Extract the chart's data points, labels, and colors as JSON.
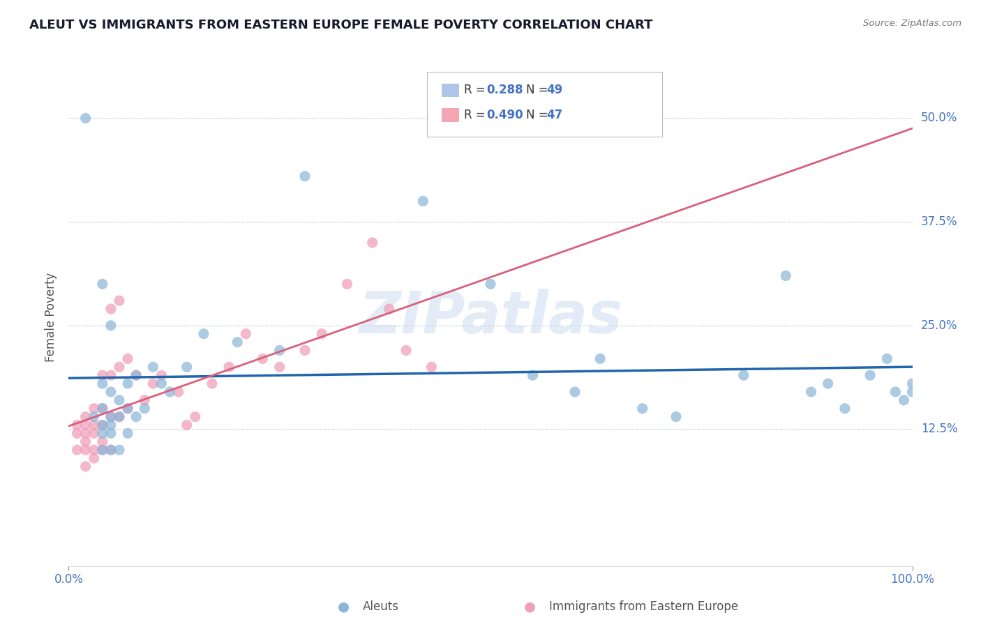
{
  "title": "ALEUT VS IMMIGRANTS FROM EASTERN EUROPE FEMALE POVERTY CORRELATION CHART",
  "source": "Source: ZipAtlas.com",
  "ylabel": "Female Poverty",
  "yticks": [
    0.0,
    0.125,
    0.25,
    0.375,
    0.5
  ],
  "ytick_labels": [
    "",
    "12.5%",
    "25.0%",
    "37.5%",
    "50.0%"
  ],
  "xtick_labels": [
    "0.0%",
    "100.0%"
  ],
  "xlim": [
    0.0,
    1.0
  ],
  "ylim": [
    -0.04,
    0.56
  ],
  "aleuts_x": [
    0.02,
    0.03,
    0.04,
    0.04,
    0.04,
    0.04,
    0.04,
    0.04,
    0.05,
    0.05,
    0.05,
    0.05,
    0.05,
    0.05,
    0.06,
    0.06,
    0.06,
    0.07,
    0.07,
    0.07,
    0.08,
    0.08,
    0.09,
    0.1,
    0.11,
    0.12,
    0.14,
    0.16,
    0.2,
    0.25,
    0.28,
    0.42,
    0.5,
    0.55,
    0.6,
    0.63,
    0.68,
    0.72,
    0.8,
    0.85,
    0.88,
    0.9,
    0.92,
    0.95,
    0.97,
    0.98,
    0.99,
    1.0,
    1.0
  ],
  "aleuts_y": [
    0.5,
    0.14,
    0.3,
    0.18,
    0.15,
    0.13,
    0.12,
    0.1,
    0.25,
    0.17,
    0.14,
    0.13,
    0.12,
    0.1,
    0.16,
    0.14,
    0.1,
    0.18,
    0.15,
    0.12,
    0.19,
    0.14,
    0.15,
    0.2,
    0.18,
    0.17,
    0.2,
    0.24,
    0.23,
    0.22,
    0.43,
    0.4,
    0.3,
    0.19,
    0.17,
    0.21,
    0.15,
    0.14,
    0.19,
    0.31,
    0.17,
    0.18,
    0.15,
    0.19,
    0.21,
    0.17,
    0.16,
    0.18,
    0.17
  ],
  "eastern_x": [
    0.01,
    0.01,
    0.01,
    0.02,
    0.02,
    0.02,
    0.02,
    0.02,
    0.02,
    0.03,
    0.03,
    0.03,
    0.03,
    0.03,
    0.04,
    0.04,
    0.04,
    0.04,
    0.04,
    0.05,
    0.05,
    0.05,
    0.05,
    0.06,
    0.06,
    0.06,
    0.07,
    0.07,
    0.08,
    0.09,
    0.1,
    0.11,
    0.13,
    0.14,
    0.15,
    0.17,
    0.19,
    0.21,
    0.23,
    0.25,
    0.28,
    0.3,
    0.33,
    0.36,
    0.38,
    0.4,
    0.43
  ],
  "eastern_y": [
    0.13,
    0.12,
    0.1,
    0.14,
    0.13,
    0.12,
    0.11,
    0.1,
    0.08,
    0.15,
    0.13,
    0.12,
    0.1,
    0.09,
    0.19,
    0.15,
    0.13,
    0.11,
    0.1,
    0.27,
    0.19,
    0.14,
    0.1,
    0.28,
    0.2,
    0.14,
    0.21,
    0.15,
    0.19,
    0.16,
    0.18,
    0.19,
    0.17,
    0.13,
    0.14,
    0.18,
    0.2,
    0.24,
    0.21,
    0.2,
    0.22,
    0.24,
    0.3,
    0.35,
    0.27,
    0.22,
    0.2
  ],
  "aleut_color": "#8ab4d8",
  "eastern_color": "#f0a0b8",
  "aleut_line_color": "#2166ac",
  "eastern_line_color": "#d9607a",
  "aleut_line_R": 0.288,
  "aleut_line_N": 49,
  "eastern_line_R": 0.49,
  "eastern_line_N": 47,
  "watermark_text": "ZIPatlas",
  "watermark_color": "#c8d8f0",
  "background_color": "#ffffff",
  "grid_color": "#c8d0e0",
  "title_color": "#1a1a2e",
  "axis_label_color": "#555555",
  "tick_label_color": "#4472c4",
  "legend_label1": "Aleuts",
  "legend_label2": "Immigrants from Eastern Europe"
}
